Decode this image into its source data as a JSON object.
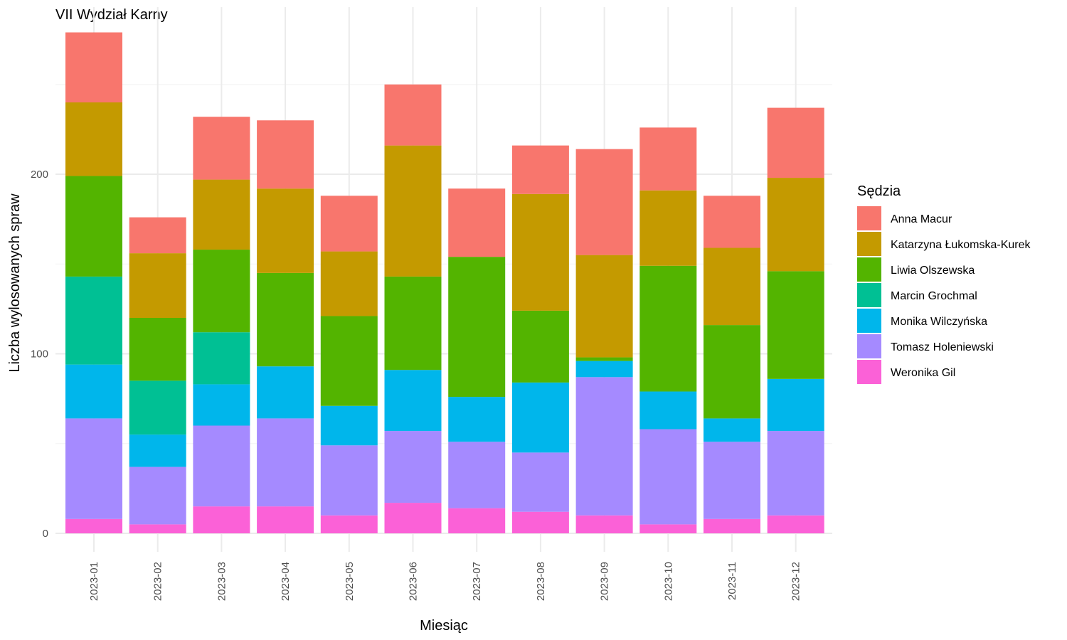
{
  "chart_data": {
    "type": "bar",
    "stacked": true,
    "title": "VII Wydział Karny",
    "xlabel": "Miesiąc",
    "ylabel": "Liczba wylosowanych spraw",
    "ylim": [
      0,
      290
    ],
    "yticks": [
      0,
      100,
      200
    ],
    "grid": true,
    "legend_title": "Sędzia",
    "legend_position": "right",
    "categories": [
      "2023-01",
      "2023-02",
      "2023-03",
      "2023-04",
      "2023-05",
      "2023-06",
      "2023-07",
      "2023-08",
      "2023-09",
      "2023-10",
      "2023-11",
      "2023-12"
    ],
    "series": [
      {
        "name": "Anna Macur",
        "color": "#F8766D",
        "values": [
          39,
          20,
          35,
          38,
          31,
          34,
          38,
          27,
          59,
          35,
          29,
          39
        ]
      },
      {
        "name": "Katarzyna Łukomska-Kurek",
        "color": "#C49A00",
        "values": [
          41,
          36,
          39,
          47,
          36,
          73,
          0,
          65,
          57,
          42,
          43,
          52
        ]
      },
      {
        "name": "Liwia Olszewska",
        "color": "#53B400",
        "values": [
          56,
          35,
          46,
          52,
          50,
          52,
          78,
          40,
          2,
          70,
          52,
          60
        ]
      },
      {
        "name": "Marcin Grochmal",
        "color": "#00C094",
        "values": [
          49,
          30,
          29,
          0,
          0,
          0,
          0,
          0,
          0,
          0,
          0,
          0
        ]
      },
      {
        "name": "Monika Wilczyńska",
        "color": "#00B6EB",
        "values": [
          30,
          18,
          23,
          29,
          22,
          34,
          25,
          39,
          9,
          21,
          13,
          29
        ]
      },
      {
        "name": "Tomasz Holeniewski",
        "color": "#A58AFF",
        "values": [
          56,
          32,
          45,
          49,
          39,
          40,
          37,
          33,
          77,
          53,
          43,
          47
        ]
      },
      {
        "name": "Weronika Gil",
        "color": "#FB61D7",
        "values": [
          8,
          5,
          15,
          15,
          10,
          17,
          14,
          12,
          10,
          5,
          8,
          10
        ]
      }
    ]
  }
}
